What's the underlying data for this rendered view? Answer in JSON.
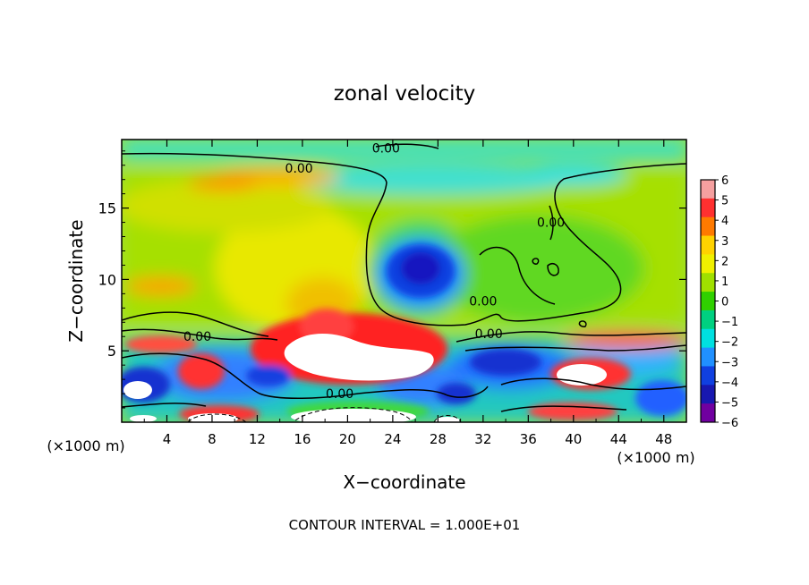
{
  "chart_data": {
    "type": "heatmap",
    "title": "zonal velocity",
    "xlabel": "X−coordinate",
    "ylabel": "Z−coordinate",
    "x_unit_left": "(×1000 m)",
    "x_unit_right": "(×1000 m)",
    "footer": "CONTOUR INTERVAL = 1.000E+01",
    "xlim": [
      0,
      50
    ],
    "ylim": [
      0,
      19.8
    ],
    "x_ticks": [
      "4",
      "8",
      "12",
      "16",
      "20",
      "24",
      "28",
      "32",
      "36",
      "40",
      "44",
      "48"
    ],
    "y_ticks": [
      "5",
      "10",
      "15"
    ],
    "colorbar": {
      "labels": [
        "6",
        "5",
        "4",
        "3",
        "2",
        "1",
        "0",
        "−1",
        "−2",
        "−3",
        "−4",
        "−5",
        "−6"
      ],
      "colors": [
        "#f5a0a0",
        "#ff3030",
        "#ff7a00",
        "#ffd200",
        "#f0f000",
        "#a0e000",
        "#30d000",
        "#00d080",
        "#00e0e0",
        "#2090ff",
        "#1040e0",
        "#1818b0",
        "#7000a0"
      ]
    },
    "contour_labels": [
      {
        "text": "0.00",
        "x": 23.4,
        "y": 19.2
      },
      {
        "text": "0.00",
        "x": 15.7,
        "y": 17.8
      },
      {
        "text": "0.00",
        "x": 6.7,
        "y": 6.0
      },
      {
        "text": "0.00",
        "x": 32.5,
        "y": 6.2
      },
      {
        "text": "0.00",
        "x": 19.3,
        "y": 2.0
      },
      {
        "text": "0.00",
        "x": 38.0,
        "y": 14.0
      },
      {
        "text": "0.00",
        "x": 32.0,
        "y": 8.5
      }
    ],
    "regions": [
      {
        "name": "negative core aloft",
        "x": 25.5,
        "y": 10.5,
        "value": -5
      },
      {
        "name": "positive jet",
        "x": 19.5,
        "y": 5.0,
        "value": 6
      },
      {
        "name": "upper easterly band",
        "x": 30,
        "y": 17.5,
        "value": -2
      },
      {
        "name": "upper westerly band",
        "x": 13,
        "y": 17.2,
        "value": 3
      }
    ]
  }
}
